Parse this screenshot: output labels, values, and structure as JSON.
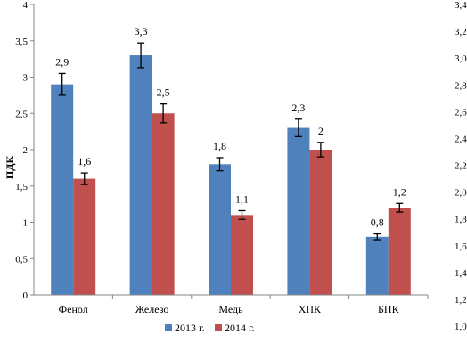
{
  "chart_data": {
    "type": "bar",
    "ylabel": "ПДК",
    "ylim": [
      0,
      4
    ],
    "yticks": [
      "0",
      "0,5",
      "1",
      "1,5",
      "2",
      "2,5",
      "3",
      "3,5",
      "4"
    ],
    "ytick_values": [
      0,
      0.5,
      1,
      1.5,
      2,
      2.5,
      3,
      3.5,
      4
    ],
    "categories": [
      "Фенол",
      "Железо",
      "Медь",
      "ХПК",
      "БПК"
    ],
    "series": [
      {
        "name": "2013 г.",
        "color": "#4F81BD",
        "values": [
          2.9,
          3.3,
          1.8,
          2.3,
          0.8
        ],
        "labels": [
          "2,9",
          "3,3",
          "1,8",
          "2,3",
          "0,8"
        ],
        "errors": [
          0.15,
          0.17,
          0.09,
          0.12,
          0.04
        ]
      },
      {
        "name": "2014 г.",
        "color": "#C0504D",
        "values": [
          1.6,
          2.5,
          1.1,
          2.0,
          1.2
        ],
        "labels": [
          "1,6",
          "2,5",
          "1,1",
          "2",
          "1,2"
        ],
        "errors": [
          0.08,
          0.13,
          0.06,
          0.1,
          0.06
        ]
      }
    ],
    "secondary_axis_ticks": [
      "1,0",
      "1,2",
      "1,4",
      "1,6",
      "1,8",
      "2,0",
      "2,2",
      "2,4",
      "2,6",
      "2,8",
      "3,0",
      "3,2",
      "3,4"
    ],
    "secondary_axis_values": [
      1.0,
      1.2,
      1.4,
      1.6,
      1.8,
      2.0,
      2.2,
      2.4,
      2.6,
      2.8,
      3.0,
      3.2,
      3.4
    ],
    "secondary_axis_range": [
      1.0,
      3.4
    ],
    "legend_position": "bottom",
    "grid": false
  }
}
